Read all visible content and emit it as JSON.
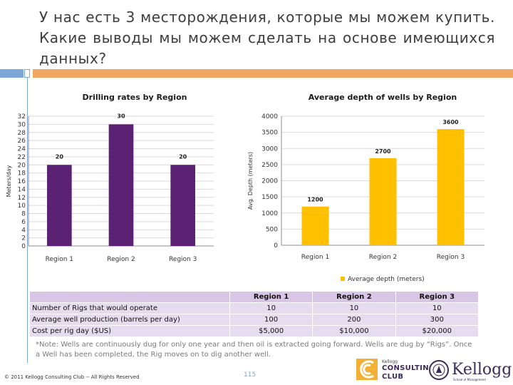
{
  "title": "У нас есть 3 месторождения, которые мы можем купить. Какие выводы мы можем сделать на основе имеющихся данных?",
  "colors": {
    "purple": "#5b2273",
    "gold": "#ffc000",
    "accent_blue": "#7ea6d6",
    "accent_orange": "#f0a761"
  },
  "chart_data": [
    {
      "type": "bar",
      "title": "Drilling rates by Region",
      "categories": [
        "Region 1",
        "Region 2",
        "Region 3"
      ],
      "values": [
        20,
        30,
        20
      ],
      "data_labels": [
        "20",
        "30",
        "20"
      ],
      "ylabel": "Meters/day",
      "xlabel": "",
      "ylim": [
        0,
        32
      ],
      "yticks": [
        "0",
        "2",
        "4",
        "6",
        "8",
        "10",
        "12",
        "14",
        "16",
        "18",
        "20",
        "22",
        "24",
        "26",
        "28",
        "30",
        "32"
      ],
      "grid": true,
      "color": "#5b2273"
    },
    {
      "type": "bar",
      "title": "Average depth of wells by Region",
      "categories": [
        "Region 1",
        "Region 2",
        "Region 3"
      ],
      "values": [
        1200,
        2700,
        3600
      ],
      "data_labels": [
        "1200",
        "2700",
        "3600"
      ],
      "ylabel": "Avg. Depth (meters)",
      "xlabel": "",
      "ylim": [
        0,
        4000
      ],
      "yticks": [
        "0",
        "500",
        "1000",
        "1500",
        "2000",
        "2500",
        "3000",
        "3500",
        "4000"
      ],
      "grid": true,
      "legend": "Average depth (meters)",
      "legend_position": "bottom",
      "color": "#ffc000"
    }
  ],
  "table": {
    "headers": [
      "Region 1",
      "Region 2",
      "Region 3"
    ],
    "rows": [
      {
        "label": "Number of Rigs that would operate",
        "values": [
          "10",
          "10",
          "10"
        ]
      },
      {
        "label": "Average well production (barrels per day)",
        "values": [
          "100",
          "200",
          "300"
        ]
      },
      {
        "label": "Cost per rig day ($US)",
        "values": [
          "$5,000",
          "$10,000",
          "$20,000"
        ]
      }
    ]
  },
  "note": "*Note: Wells are continuously dug for only one year and then oil is extracted going forward. Wells are dug by “Rigs”. Once a Well has been completed, the Rig moves on to dig another well.",
  "footer": {
    "copyright": "© 2011 Kellogg Consulting Club -- All Rights Reserved",
    "page": "115"
  },
  "logos": {
    "kellogg_consulting_small": "Kellogg",
    "consulting_word": "CONSULTING",
    "club_word": "CLUB",
    "kellogg_word": "Kellogg",
    "kellogg_sub": "School of Management"
  }
}
